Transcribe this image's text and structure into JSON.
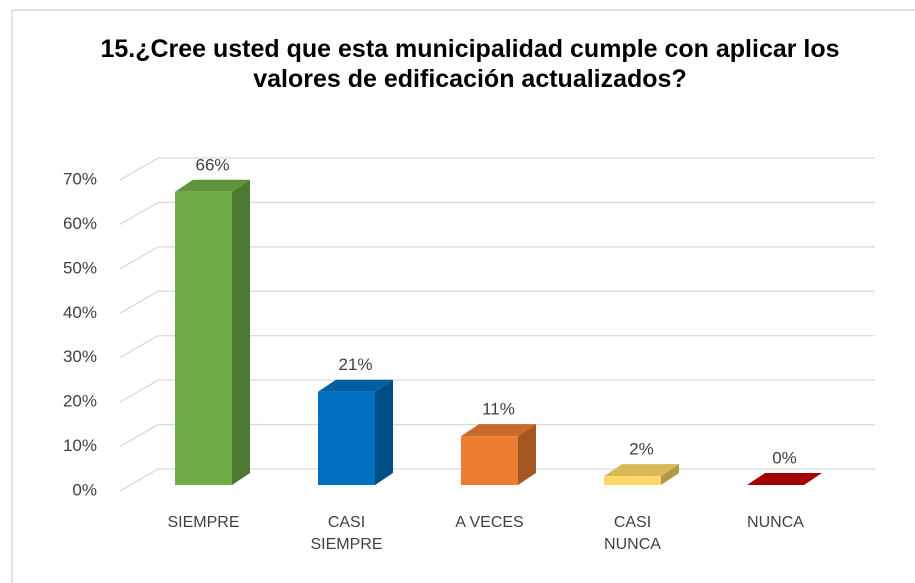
{
  "chart_data": {
    "type": "bar3d",
    "title": "15.¿Cree usted que esta municipalidad cumple con aplicar los valores de edificación actualizados?",
    "categories": [
      "SIEMPRE",
      "CASI SIEMPRE",
      "A VECES",
      "CASI NUNCA",
      "NUNCA"
    ],
    "values": [
      66,
      21,
      11,
      2,
      0
    ],
    "value_labels": [
      "66%",
      "21%",
      "11%",
      "2%",
      "0%"
    ],
    "colors": [
      "#70ad47",
      "#0070c0",
      "#ed7d31",
      "#ffd966",
      "#c00000"
    ],
    "ylim": [
      0,
      70
    ],
    "yticks": [
      {
        "value": 0,
        "label": "0%"
      },
      {
        "value": 10,
        "label": "10%"
      },
      {
        "value": 20,
        "label": "20%"
      },
      {
        "value": 30,
        "label": "30%"
      },
      {
        "value": 40,
        "label": "40%"
      },
      {
        "value": 50,
        "label": "50%"
      },
      {
        "value": 60,
        "label": "60%"
      },
      {
        "value": 70,
        "label": "70%"
      }
    ],
    "grid": true
  }
}
